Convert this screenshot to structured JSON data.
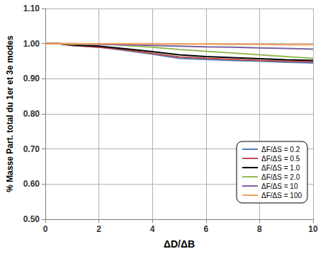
{
  "chart_data": {
    "type": "line",
    "x_label": "ΔD/ΔB",
    "y_label": "% Masse Part. total du 1er et 3e modes",
    "xlim": [
      0,
      10
    ],
    "xticks": [
      0,
      2,
      4,
      6,
      8,
      10
    ],
    "ylim": [
      0.5,
      1.1
    ],
    "yticks": [
      {
        "value": 0.5,
        "label": "0.50"
      },
      {
        "value": 0.6,
        "label": "0.60"
      },
      {
        "value": 0.7,
        "label": "0.70"
      },
      {
        "value": 0.8,
        "label": "0.80"
      },
      {
        "value": 0.9,
        "label": "0.90"
      },
      {
        "value": 1.0,
        "label": "1.00"
      },
      {
        "value": 1.1,
        "label": "1.10"
      }
    ],
    "grid": true,
    "legend": "lower right",
    "x": [
      0,
      0.5,
      1,
      2,
      3,
      4,
      5,
      6,
      7,
      8,
      9,
      10
    ],
    "series": [
      {
        "name": "ΔF/ΔS = 0.2",
        "color": "#4a7ebb",
        "values": [
          1.0,
          1.0,
          0.995,
          0.99,
          0.98,
          0.97,
          0.958,
          0.955,
          0.952,
          0.95,
          0.947,
          0.945
        ]
      },
      {
        "name": "ΔF/ΔS = 0.5",
        "color": "#be4b48",
        "values": [
          1.0,
          1.0,
          0.995,
          0.99,
          0.982,
          0.972,
          0.962,
          0.958,
          0.955,
          0.952,
          0.95,
          0.948
        ]
      },
      {
        "name": "ΔF/ΔS = 1.0",
        "color": "#000000",
        "values": [
          1.0,
          1.0,
          0.996,
          0.993,
          0.985,
          0.977,
          0.968,
          0.963,
          0.96,
          0.957,
          0.954,
          0.952
        ]
      },
      {
        "name": "ΔF/ΔS = 2.0",
        "color": "#98b954",
        "values": [
          1.0,
          1.0,
          0.998,
          1.0,
          0.995,
          0.99,
          0.983,
          0.978,
          0.973,
          0.968,
          0.963,
          0.958
        ]
      },
      {
        "name": "ΔF/ΔS = 10",
        "color": "#7d60a0",
        "values": [
          1.0,
          1.0,
          1.0,
          0.998,
          0.997,
          0.995,
          0.993,
          0.991,
          0.99,
          0.988,
          0.986,
          0.984
        ]
      },
      {
        "name": "ΔF/ΔS = 100",
        "color": "#f59d56",
        "values": [
          1.0,
          1.0,
          1.0,
          1.0,
          1.0,
          1.0,
          0.999,
          0.999,
          0.998,
          0.998,
          0.997,
          0.997
        ]
      }
    ]
  }
}
